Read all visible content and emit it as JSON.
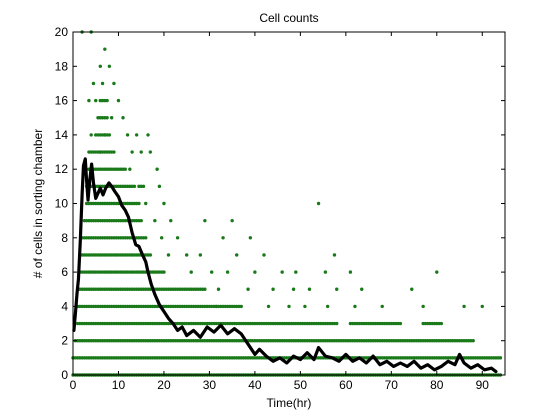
{
  "chart_data": {
    "type": "scatter",
    "title": "Cell counts",
    "xlabel": "Time(hr)",
    "ylabel": "# of cells in sorting chamber",
    "xlim": [
      0,
      95
    ],
    "ylim": [
      0,
      20
    ],
    "xticks": [
      0,
      10,
      20,
      30,
      40,
      50,
      60,
      70,
      80,
      90
    ],
    "yticks": [
      0,
      2,
      4,
      6,
      8,
      10,
      12,
      14,
      16,
      18,
      20
    ],
    "grid": false,
    "legend": "none",
    "colors": {
      "points": "#1a7a1a",
      "line": "#000000",
      "axes": "#000000",
      "background": "#ffffff"
    },
    "series": [
      {
        "kind": "scatter",
        "points": [
          [
            2.0,
            20
          ],
          [
            4.0,
            20
          ],
          [
            7.0,
            19
          ],
          [
            6.0,
            18
          ],
          [
            8.0,
            18
          ],
          [
            4.5,
            17
          ],
          [
            6.5,
            17
          ],
          [
            9.0,
            17
          ],
          [
            3.5,
            16
          ],
          [
            5.0,
            16
          ],
          [
            7.5,
            16
          ],
          [
            10.0,
            16
          ],
          [
            5.5,
            15
          ],
          [
            8.5,
            15
          ],
          [
            11.0,
            15
          ],
          [
            4.0,
            14
          ],
          [
            7.0,
            14
          ],
          [
            12.0,
            14
          ],
          [
            14.0,
            14
          ],
          [
            16.5,
            14
          ],
          [
            3.5,
            13
          ],
          [
            6.0,
            13
          ],
          [
            9.0,
            13
          ],
          [
            13.0,
            13
          ],
          [
            15.0,
            13
          ],
          [
            17.0,
            13
          ],
          [
            12.5,
            12
          ],
          [
            18.5,
            12
          ],
          [
            14.5,
            11
          ],
          [
            19.0,
            11
          ],
          [
            16.0,
            10
          ],
          [
            20.0,
            10
          ],
          [
            54.0,
            10
          ],
          [
            18.0,
            9
          ],
          [
            21.5,
            9
          ],
          [
            29.0,
            9
          ],
          [
            35.0,
            9
          ],
          [
            19.5,
            8
          ],
          [
            23.0,
            8
          ],
          [
            33.0,
            8
          ],
          [
            39.0,
            8
          ],
          [
            21.0,
            7
          ],
          [
            25.0,
            7
          ],
          [
            28.0,
            7
          ],
          [
            36.0,
            7
          ],
          [
            42.0,
            7
          ],
          [
            57.5,
            7
          ],
          [
            26.0,
            6
          ],
          [
            30.5,
            6
          ],
          [
            34.0,
            6
          ],
          [
            40.0,
            6
          ],
          [
            46.0,
            6
          ],
          [
            49.0,
            6
          ],
          [
            55.5,
            6
          ],
          [
            61.0,
            6
          ],
          [
            80.0,
            6
          ],
          [
            32.0,
            5
          ],
          [
            38.5,
            5
          ],
          [
            44.0,
            5
          ],
          [
            48.5,
            5
          ],
          [
            52.0,
            5
          ],
          [
            58.0,
            5
          ],
          [
            63.5,
            5
          ],
          [
            74.5,
            5
          ],
          [
            31.5,
            4
          ],
          [
            37.0,
            4
          ],
          [
            43.0,
            4
          ],
          [
            47.5,
            4
          ],
          [
            51.0,
            4
          ],
          [
            56.0,
            4
          ],
          [
            62.0,
            4
          ],
          [
            68.0,
            4
          ],
          [
            77.0,
            4
          ],
          [
            86.0,
            4
          ],
          [
            90.0,
            4
          ]
        ],
        "bands": [
          [
            0,
            [
              0,
              94
            ]
          ],
          [
            1,
            [
              0,
              94
            ]
          ],
          [
            2,
            [
              0.5,
              88
            ]
          ],
          [
            3,
            [
              1,
              58
            ],
            [
              61,
              72
            ],
            [
              77,
              81
            ]
          ],
          [
            4,
            [
              1,
              36.5
            ]
          ],
          [
            5,
            [
              1.5,
              29
            ]
          ],
          [
            6,
            [
              1.5,
              20
            ]
          ],
          [
            7,
            [
              2,
              17
            ]
          ],
          [
            8,
            [
              2,
              16
            ]
          ],
          [
            9,
            [
              2.5,
              15
            ]
          ],
          [
            10,
            [
              3,
              14.5
            ]
          ],
          [
            11,
            [
              3,
              13.5
            ],
            [
              15,
              15.8
            ]
          ],
          [
            12,
            [
              3.5,
              11.5
            ]
          ],
          [
            13,
            [
              4,
              8.5
            ]
          ],
          [
            14,
            [
              5,
              8
            ]
          ],
          [
            15,
            [
              6,
              7.5
            ]
          ],
          [
            16,
            [
              6,
              7
            ]
          ]
        ]
      },
      {
        "kind": "line",
        "name": "",
        "values": [
          [
            0.2,
            2.6
          ],
          [
            0.5,
            3.5
          ],
          [
            0.9,
            4.8
          ],
          [
            1.2,
            5.6
          ],
          [
            1.6,
            7.8
          ],
          [
            2.0,
            10.5
          ],
          [
            2.3,
            12.2
          ],
          [
            2.7,
            12.6
          ],
          [
            3.0,
            11.3
          ],
          [
            3.3,
            10.2
          ],
          [
            3.7,
            11.4
          ],
          [
            4.1,
            12.3
          ],
          [
            4.5,
            11.2
          ],
          [
            5.0,
            10.3
          ],
          [
            5.5,
            10.6
          ],
          [
            6.0,
            10.9
          ],
          [
            6.6,
            10.5
          ],
          [
            7.2,
            10.9
          ],
          [
            7.9,
            11.2
          ],
          [
            8.5,
            11.0
          ],
          [
            9.2,
            10.7
          ],
          [
            10.0,
            10.4
          ],
          [
            10.7,
            9.9
          ],
          [
            11.5,
            9.6
          ],
          [
            12.2,
            9.2
          ],
          [
            13.0,
            8.3
          ],
          [
            13.8,
            7.6
          ],
          [
            14.5,
            7.5
          ],
          [
            15.3,
            7.0
          ],
          [
            16.0,
            6.6
          ],
          [
            16.5,
            6.0
          ],
          [
            17.2,
            5.3
          ],
          [
            18.0,
            4.7
          ],
          [
            19.0,
            4.1
          ],
          [
            20.0,
            3.7
          ],
          [
            21.0,
            3.3
          ],
          [
            22.0,
            3.0
          ],
          [
            23.0,
            2.6
          ],
          [
            24.0,
            2.8
          ],
          [
            25.0,
            2.3
          ],
          [
            26.5,
            2.6
          ],
          [
            28.0,
            2.2
          ],
          [
            29.5,
            2.8
          ],
          [
            31.0,
            2.5
          ],
          [
            32.5,
            2.9
          ],
          [
            34.0,
            2.4
          ],
          [
            35.5,
            2.7
          ],
          [
            37.0,
            2.4
          ],
          [
            38.0,
            2.0
          ],
          [
            39.0,
            1.6
          ],
          [
            40.0,
            1.2
          ],
          [
            41.0,
            1.5
          ],
          [
            42.5,
            1.1
          ],
          [
            44.0,
            0.8
          ],
          [
            45.5,
            1.0
          ],
          [
            47.0,
            0.7
          ],
          [
            48.5,
            1.1
          ],
          [
            50.0,
            0.9
          ],
          [
            51.5,
            1.3
          ],
          [
            53.0,
            0.9
          ],
          [
            54.0,
            1.6
          ],
          [
            55.5,
            1.1
          ],
          [
            57.0,
            1.0
          ],
          [
            58.5,
            0.8
          ],
          [
            60.0,
            1.2
          ],
          [
            61.5,
            0.8
          ],
          [
            63.0,
            1.0
          ],
          [
            64.5,
            0.7
          ],
          [
            66.0,
            1.1
          ],
          [
            67.5,
            0.6
          ],
          [
            69.0,
            0.8
          ],
          [
            70.5,
            0.5
          ],
          [
            72.0,
            0.7
          ],
          [
            73.5,
            0.5
          ],
          [
            75.0,
            0.8
          ],
          [
            76.5,
            0.4
          ],
          [
            78.0,
            0.6
          ],
          [
            79.5,
            0.3
          ],
          [
            81.0,
            0.5
          ],
          [
            82.5,
            0.8
          ],
          [
            84.0,
            0.6
          ],
          [
            85.0,
            1.2
          ],
          [
            86.0,
            0.7
          ],
          [
            87.5,
            0.4
          ],
          [
            89.0,
            0.6
          ],
          [
            90.5,
            0.3
          ],
          [
            92.0,
            0.4
          ],
          [
            93.0,
            0.2
          ]
        ]
      }
    ]
  }
}
